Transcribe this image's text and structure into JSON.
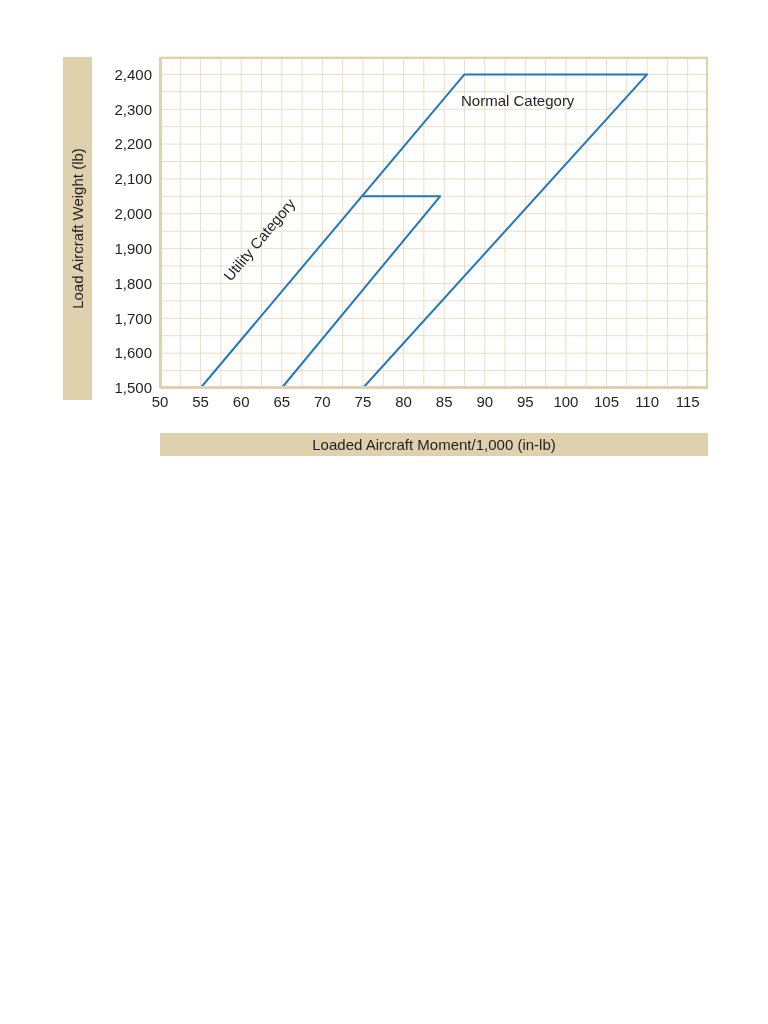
{
  "chart_data": {
    "type": "line",
    "xlabel": "Loaded Aircraft Moment/1,000 (in-lb)",
    "ylabel": "Load Aircraft Weight (lb)",
    "series": [
      {
        "color": "#1f78c1",
        "x": [
          55,
          87.5,
          110,
          75
        ],
        "values": [
          1500,
          2400,
          2400,
          1500
        ]
      },
      {
        "color": "#1f78c1",
        "x": [
          75,
          84.5,
          65
        ],
        "values": [
          2050,
          2050,
          1500
        ]
      }
    ],
    "annotations": [
      "Normal Category",
      "Utility Category"
    ],
    "xlim": [
      50,
      117.5
    ],
    "xticks": [
      50,
      {
        "value": 52.5,
        "label": null
      },
      55,
      {
        "value": 57.5,
        "label": null
      },
      60,
      {
        "value": 62.5,
        "label": null
      },
      65,
      {
        "value": 67.5,
        "label": null
      },
      70,
      {
        "value": 72.5,
        "label": null
      },
      75,
      {
        "value": 77.5,
        "label": null
      },
      80,
      {
        "value": 82.5,
        "label": null
      },
      85,
      {
        "value": 87.5,
        "label": null
      },
      90,
      {
        "value": 92.5,
        "label": null
      },
      95,
      {
        "value": 97.5,
        "label": null
      },
      100,
      {
        "value": 102.5,
        "label": null
      },
      105,
      {
        "value": 107.5,
        "label": null
      },
      110,
      {
        "value": 112.5,
        "label": null
      },
      115,
      {
        "value": 117.5,
        "label": null
      }
    ],
    "ylim": [
      1500,
      2450
    ],
    "yticks": [
      {
        "value": 1500,
        "label": "1,500"
      },
      {
        "value": 1550,
        "label": null
      },
      {
        "value": 1600,
        "label": "1,600"
      },
      {
        "value": 1650,
        "label": null
      },
      {
        "value": 1700,
        "label": "1,700"
      },
      {
        "value": 1750,
        "label": null
      },
      {
        "value": 1800,
        "label": "1,800"
      },
      {
        "value": 1850,
        "label": null
      },
      {
        "value": 1900,
        "label": "1,900"
      },
      {
        "value": 1950,
        "label": null
      },
      {
        "value": 2000,
        "label": "2,000"
      },
      {
        "value": 2050,
        "label": null
      },
      {
        "value": 2100,
        "label": "2,100"
      },
      {
        "value": 2150,
        "label": null
      },
      {
        "value": 2200,
        "label": "2,200"
      },
      {
        "value": 2250,
        "label": null
      },
      {
        "value": 2300,
        "label": "2,300"
      },
      {
        "value": 2350,
        "label": null
      },
      {
        "value": 2400,
        "label": "2,400"
      },
      {
        "value": 2450,
        "label": null
      }
    ],
    "grid": true,
    "marker": "none",
    "line_style": "solid"
  }
}
